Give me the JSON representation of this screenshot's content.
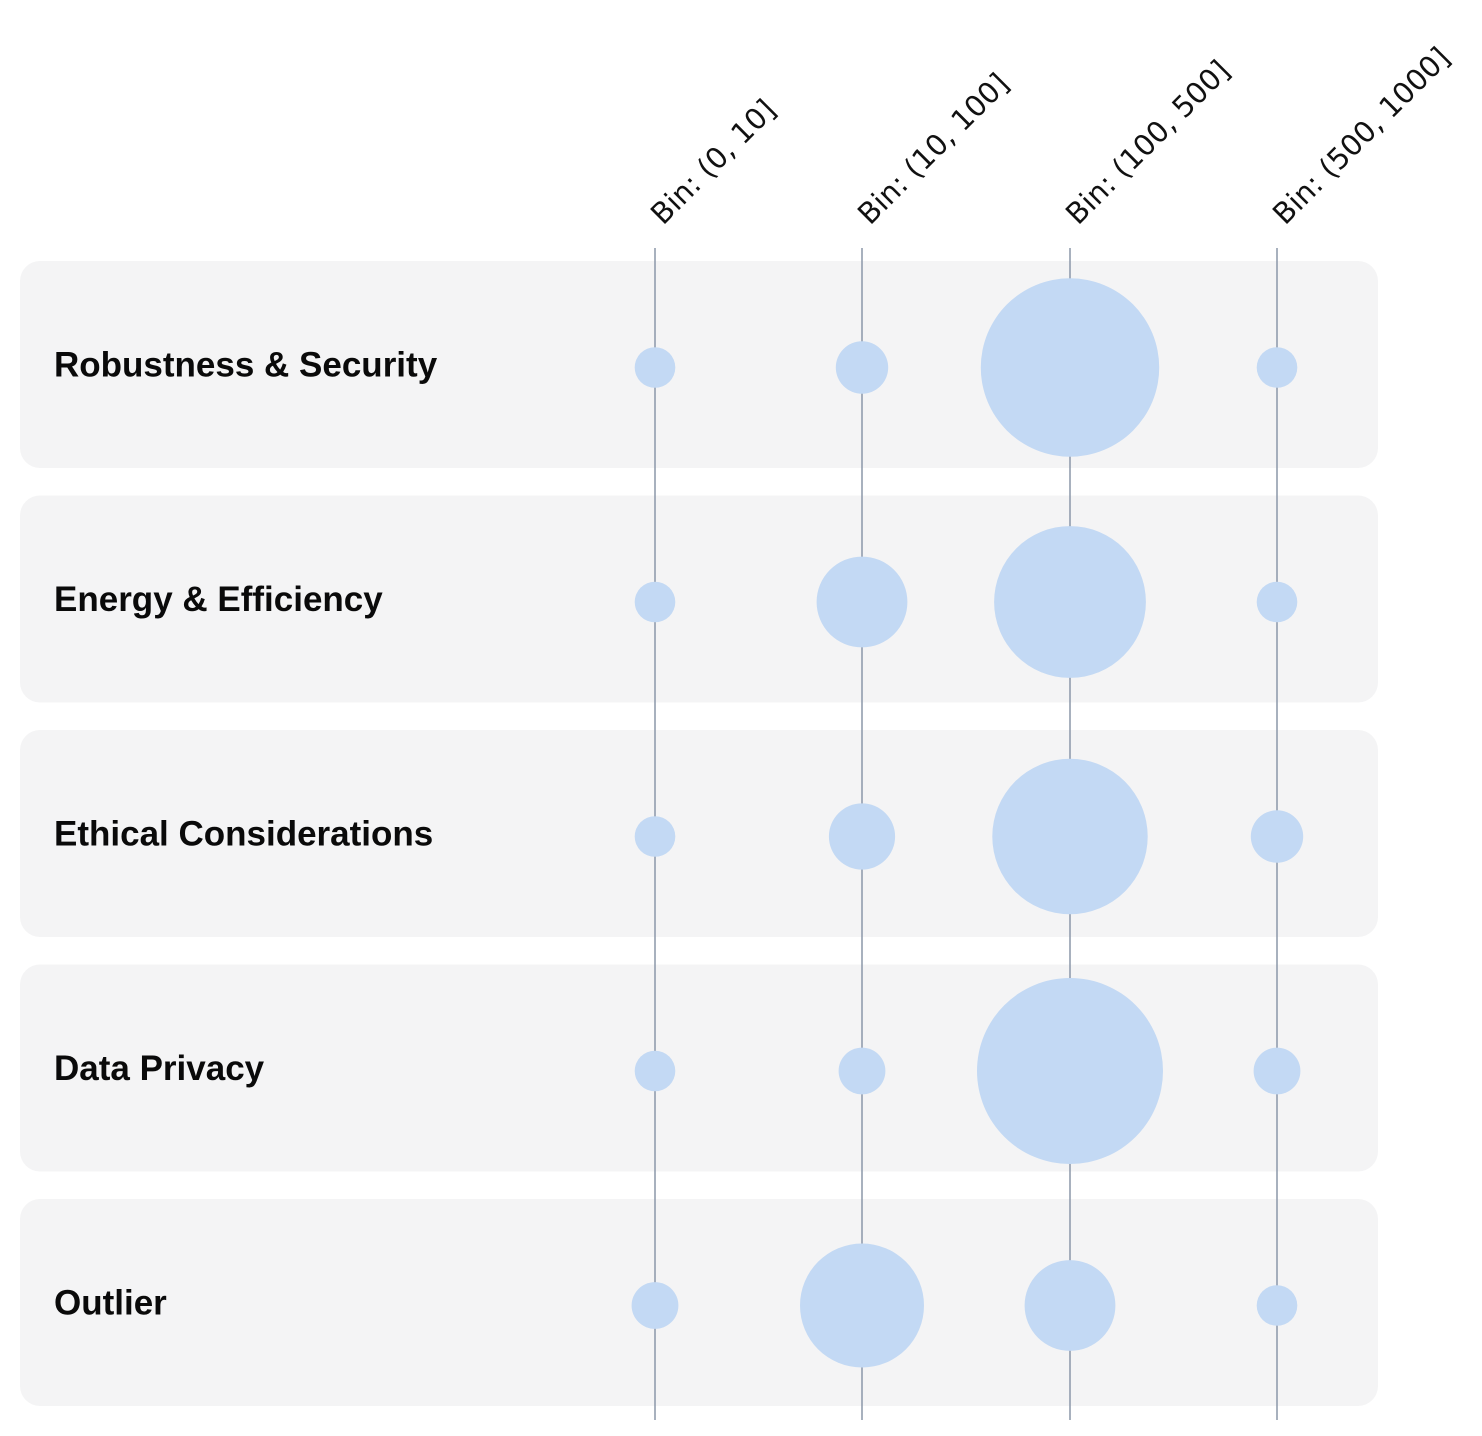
{
  "colors": {
    "bubble": "#c3d9f4",
    "row_background": "#f4f4f5",
    "gridline": "#8b97a8",
    "label": "#0a0a0a"
  },
  "chart_data": {
    "type": "bubble-matrix",
    "title": "",
    "columns": [
      "Bin: (0, 10]",
      "Bin: (10, 100]",
      "Bin: (100, 500]",
      "Bin: (500, 1000]"
    ],
    "rows": [
      "Robustness & Security",
      "Energy & Efficiency",
      "Ethical Considerations",
      "Data Privacy",
      "Outlier"
    ],
    "values": [
      [
        3,
        5,
        58,
        3
      ],
      [
        3,
        15,
        42,
        3
      ],
      [
        3,
        8,
        44,
        5
      ],
      [
        3,
        4,
        63,
        4
      ],
      [
        4,
        28,
        15,
        3
      ]
    ],
    "size_encoding": "bubble area proportional to value",
    "grid": true,
    "legend": "none"
  }
}
